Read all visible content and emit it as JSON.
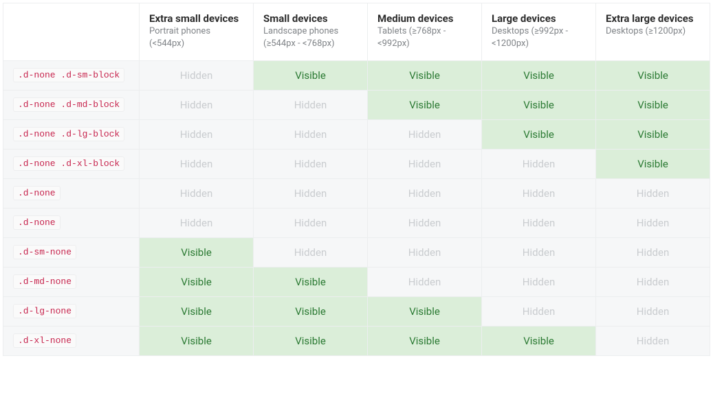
{
  "table": {
    "type": "table",
    "columns": [
      {
        "title": "Extra small devices",
        "sub": "Portrait phones (<544px)"
      },
      {
        "title": "Small devices",
        "sub": "Landscape phones (≥544px - <768px)"
      },
      {
        "title": "Medium devices",
        "sub": "Tablets (≥768px - <992px)"
      },
      {
        "title": "Large devices",
        "sub": "Desktops (≥992px - <1200px)"
      },
      {
        "title": "Extra large devices",
        "sub": "Desktops (≥1200px)"
      }
    ],
    "labels": {
      "visible": "Visible",
      "hidden": "Hidden"
    },
    "colors": {
      "visible_bg": "#dbeed9",
      "visible_text": "#2b7a33",
      "hidden_bg": "#f6f7f8",
      "hidden_text": "#c9cccf",
      "code_text": "#c7254e",
      "code_bg": "#fafafa",
      "border": "#eceeef",
      "header_text": "#2c2c2c",
      "subheader_text": "#808488"
    },
    "rows": [
      {
        "class": ".d-none .d-sm-block",
        "cells": [
          "hidden",
          "visible",
          "visible",
          "visible",
          "visible"
        ]
      },
      {
        "class": ".d-none .d-md-block",
        "cells": [
          "hidden",
          "hidden",
          "visible",
          "visible",
          "visible"
        ]
      },
      {
        "class": ".d-none .d-lg-block",
        "cells": [
          "hidden",
          "hidden",
          "hidden",
          "visible",
          "visible"
        ]
      },
      {
        "class": ".d-none .d-xl-block",
        "cells": [
          "hidden",
          "hidden",
          "hidden",
          "hidden",
          "visible"
        ]
      },
      {
        "class": ".d-none",
        "cells": [
          "hidden",
          "hidden",
          "hidden",
          "hidden",
          "hidden"
        ]
      },
      {
        "class": ".d-none",
        "cells": [
          "hidden",
          "hidden",
          "hidden",
          "hidden",
          "hidden"
        ]
      },
      {
        "class": ".d-sm-none",
        "cells": [
          "visible",
          "hidden",
          "hidden",
          "hidden",
          "hidden"
        ]
      },
      {
        "class": ".d-md-none",
        "cells": [
          "visible",
          "visible",
          "hidden",
          "hidden",
          "hidden"
        ]
      },
      {
        "class": ".d-lg-none",
        "cells": [
          "visible",
          "visible",
          "visible",
          "hidden",
          "hidden"
        ]
      },
      {
        "class": ".d-xl-none",
        "cells": [
          "visible",
          "visible",
          "visible",
          "visible",
          "hidden"
        ]
      }
    ]
  }
}
